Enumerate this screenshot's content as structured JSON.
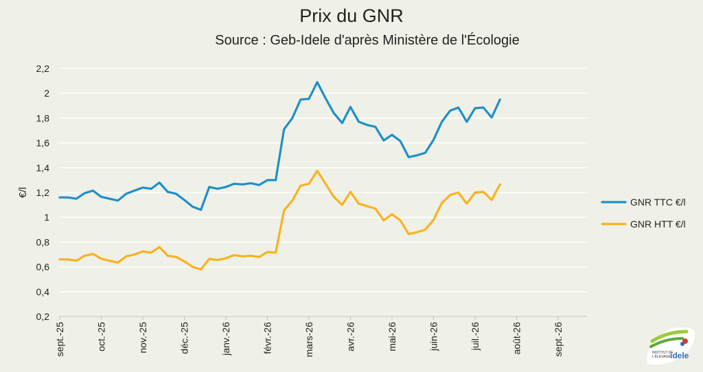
{
  "title": "Prix du GNR",
  "subtitle": "Source : Geb-Idele d'après Ministère de l'Écologie",
  "logo": {
    "line1": "INSTITUT DE",
    "line2": "L'ÉLEVAGE",
    "brand": "idele"
  },
  "chart_data": {
    "type": "line",
    "title": "Prix du GNR",
    "subtitle": "Source : Geb-Idele d'après Ministère de l'Écologie",
    "ylabel": "€/l",
    "xlabel": "",
    "ylim": [
      0.2,
      2.2
    ],
    "yticks": [
      0.2,
      0.4,
      0.6,
      0.8,
      1.0,
      1.2,
      1.4,
      1.6,
      1.8,
      2.0,
      2.2
    ],
    "ytick_labels": [
      "0,2",
      "0,4",
      "0,6",
      "0,8",
      "1",
      "1,2",
      "1,4",
      "1,6",
      "1,8",
      "2",
      "2,2"
    ],
    "grid": true,
    "legend_position": "right",
    "month_labels": [
      "sept.-25",
      "oct.-25",
      "nov.-25",
      "déc.-25",
      "janv.-26",
      "févr.-26",
      "mars-26",
      "avr.-26",
      "mai-26",
      "juin-26",
      "juil.-26",
      "août-26",
      "sept.-26"
    ],
    "points_per_month": 5,
    "series": [
      {
        "name": "GNR TTC €/l",
        "color": "#1f8fc9",
        "values": [
          1.16,
          1.16,
          1.15,
          1.195,
          1.215,
          1.165,
          1.15,
          1.135,
          1.19,
          1.215,
          1.24,
          1.23,
          1.28,
          1.205,
          1.19,
          1.14,
          1.085,
          1.06,
          1.245,
          1.23,
          1.245,
          1.27,
          1.265,
          1.275,
          1.26,
          1.3,
          1.3,
          1.71,
          1.8,
          1.95,
          1.955,
          2.09,
          1.96,
          1.84,
          1.76,
          1.89,
          1.77,
          1.745,
          1.73,
          1.62,
          1.665,
          1.615,
          1.485,
          1.5,
          1.52,
          1.625,
          1.77,
          1.86,
          1.885,
          1.77,
          1.88,
          1.885,
          1.805,
          1.95
        ]
      },
      {
        "name": "GNR HTT €/l",
        "color": "#f9b21f",
        "values": [
          0.66,
          0.66,
          0.65,
          0.69,
          0.705,
          0.665,
          0.65,
          0.635,
          0.685,
          0.7,
          0.725,
          0.715,
          0.76,
          0.69,
          0.68,
          0.645,
          0.6,
          0.58,
          0.665,
          0.655,
          0.67,
          0.695,
          0.685,
          0.69,
          0.68,
          0.72,
          0.715,
          1.055,
          1.135,
          1.255,
          1.27,
          1.375,
          1.27,
          1.165,
          1.1,
          1.205,
          1.11,
          1.09,
          1.07,
          0.975,
          1.025,
          0.975,
          0.865,
          0.88,
          0.9,
          0.98,
          1.115,
          1.18,
          1.2,
          1.11,
          1.2,
          1.205,
          1.14,
          1.265
        ]
      }
    ]
  }
}
